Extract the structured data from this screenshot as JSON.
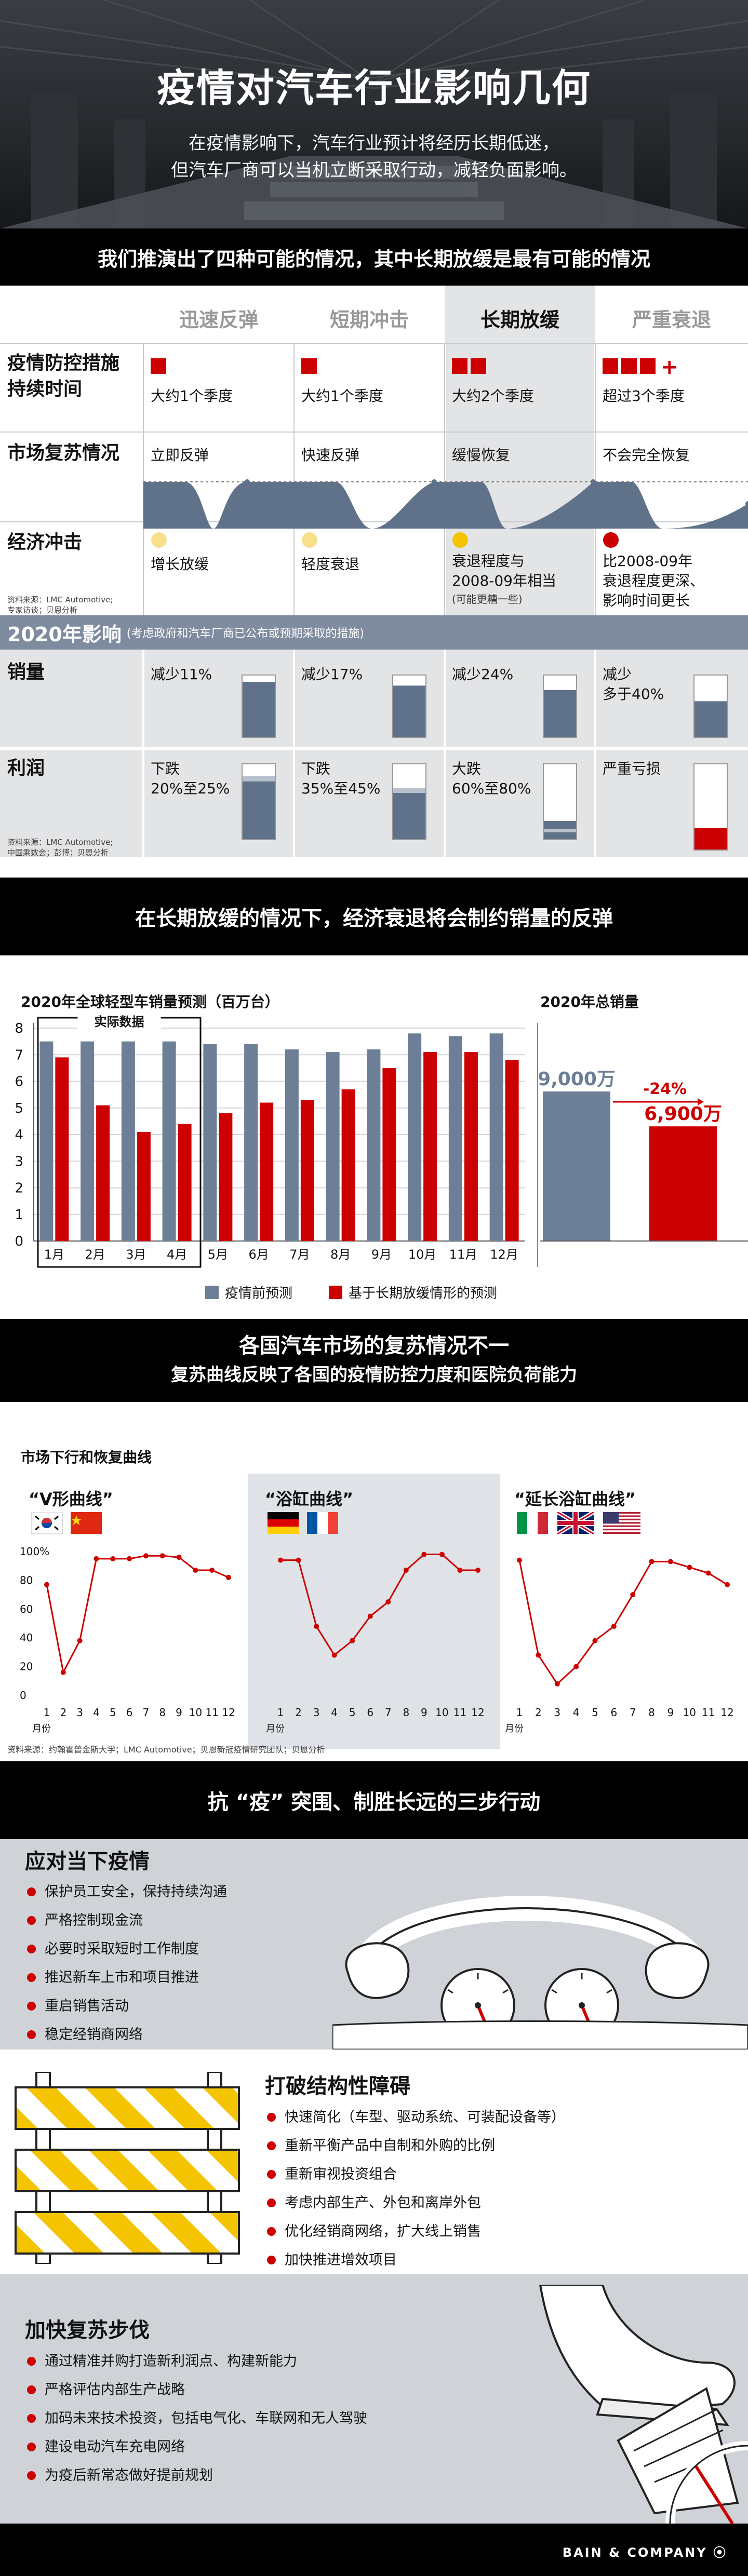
{
  "hero": {
    "title": "疫情对汽车行业影响几何",
    "subtitle_line1": "在疫情影响下，汽车行业预计将经历长期低迷，",
    "subtitle_line2": "但汽车厂商可以当机立断采取行动，减轻负面影响。"
  },
  "scenarios": {
    "banner": "我们推演出了四种可能的情况，其中长期放缓是最有可能的情况",
    "columns": [
      "迅速反弹",
      "短期冲击",
      "长期放缓",
      "严重衰退"
    ],
    "rows": {
      "measures": {
        "label_line1": "疫情防控措施",
        "label_line2": "持续时间",
        "cells": [
          "大约1个季度",
          "大约1个季度",
          "大约2个季度",
          "超过3个季度"
        ],
        "squares": [
          1,
          1,
          2,
          3
        ],
        "plus": "+"
      },
      "recovery": {
        "label": "市场复苏情况",
        "cells": [
          "立即反弹",
          "快速反弹",
          "缓慢恢复",
          "不会完全恢复"
        ]
      },
      "economy": {
        "label": "经济冲击",
        "cells": [
          {
            "line1": "增长放缓",
            "line2": "",
            "note": ""
          },
          {
            "line1": "轻度衰退",
            "line2": "",
            "note": ""
          },
          {
            "line1": "衰退程度与",
            "line2": "2008-09年相当",
            "note": "(可能更糟一些)"
          },
          {
            "line1": "比2008-09年",
            "line2": "衰退程度更深、",
            "line3": "影响时间更长",
            "note": ""
          }
        ],
        "dot_colors": [
          "#f7e08c",
          "#f7e08c",
          "#f5c400",
          "#cc0000"
        ]
      }
    },
    "source1_line1": "资料来源：LMC Automotive;",
    "source1_line2": "专家访谈；贝恩分析",
    "impact_title": "2020年影响",
    "impact_note": "(考虑政府和汽车厂商已公布或预期采取的措施)",
    "sales": {
      "label": "销量",
      "cells": [
        {
          "line1": "减少11%",
          "line2": ""
        },
        {
          "line1": "减少17%",
          "line2": ""
        },
        {
          "line1": "减少24%",
          "line2": ""
        },
        {
          "line1": "减少",
          "line2": "多于40%"
        }
      ],
      "fill_fraction": [
        0.89,
        0.83,
        0.76,
        0.58
      ]
    },
    "profit": {
      "label": "利润",
      "cells": [
        {
          "line1": "下跌",
          "line2": "20%至25%"
        },
        {
          "line1": "下跌",
          "line2": "35%至45%"
        },
        {
          "line1": "大跌",
          "line2": "60%至80%"
        },
        {
          "line1": "严重亏损",
          "line2": ""
        }
      ]
    },
    "source2_line1": "资料来源：LMC Automotive;",
    "source2_line2": "中国乘数会；彭博；贝恩分析",
    "colors": {
      "shade": "#e3e4e6",
      "accent_red": "#cc0000",
      "slate": "#5f7289"
    }
  },
  "sales_section": {
    "banner": "在长期放缓的情况下，经济衰退将会制约销量的反弹",
    "chart_title": "2020年全球轻型车销量预测（百万台）",
    "actual_label": "实际数据",
    "total_title": "2020年总销量",
    "total_before": "9,000万",
    "total_after": "6,900万",
    "total_change": "-24%",
    "legend_before": "疫情前预测",
    "legend_after": "基于长期放缓情形的预测"
  },
  "chart_data": [
    {
      "type": "bar",
      "title": "2020年全球轻型车销量预测（百万台）",
      "categories": [
        "1月",
        "2月",
        "3月",
        "4月",
        "5月",
        "6月",
        "7月",
        "8月",
        "9月",
        "10月",
        "11月",
        "12月"
      ],
      "series": [
        {
          "name": "疫情前预测",
          "color": "#6c7f97",
          "values": [
            7.5,
            7.5,
            7.5,
            7.5,
            7.4,
            7.4,
            7.2,
            7.1,
            7.2,
            7.8,
            7.7,
            7.8
          ]
        },
        {
          "name": "基于长期放缓情形的预测",
          "color": "#cc0000",
          "values": [
            6.9,
            5.1,
            4.1,
            4.4,
            4.8,
            5.2,
            5.3,
            5.7,
            6.5,
            7.1,
            7.1,
            6.8
          ]
        }
      ],
      "yticks": [
        "0",
        "1",
        "2",
        "3",
        "4",
        "5",
        "6",
        "7",
        "8"
      ],
      "ylim": [
        0,
        8
      ],
      "grid": true,
      "legend": "bottom"
    },
    {
      "type": "bar",
      "title": "2020年总销量",
      "categories": [
        "疫情前预测",
        "基于长期放缓情形的预测"
      ],
      "values": [
        90,
        69
      ],
      "labels": [
        "9,000万",
        "6,900万"
      ],
      "change": "-24%"
    },
    {
      "type": "line",
      "title": "“V形曲线”",
      "x": [
        1,
        2,
        3,
        4,
        5,
        6,
        7,
        8,
        9,
        10,
        11,
        12
      ],
      "values": [
        77,
        16,
        38,
        95,
        95,
        95,
        97,
        97,
        96,
        87,
        87,
        82
      ],
      "ylim": [
        0,
        100
      ]
    },
    {
      "type": "line",
      "title": "“浴缸曲线”",
      "x": [
        1,
        2,
        3,
        4,
        5,
        6,
        7,
        8,
        9,
        10,
        11,
        12
      ],
      "values": [
        94,
        94,
        48,
        28,
        38,
        55,
        65,
        87,
        98,
        98,
        87,
        87
      ],
      "ylim": [
        0,
        100
      ]
    },
    {
      "type": "line",
      "title": "“延长浴缸曲线”",
      "x": [
        1,
        2,
        3,
        4,
        5,
        6,
        7,
        8,
        9,
        10,
        11,
        12
      ],
      "values": [
        94,
        28,
        8,
        20,
        38,
        48,
        70,
        93,
        93,
        89,
        85,
        77
      ],
      "ylim": [
        0,
        100
      ]
    }
  ],
  "recovery_section": {
    "banner_line1": "各国汽车市场的复苏情况不一",
    "banner_line2": "复苏曲线反映了各国的疫情防控力度和医院负荷能力",
    "chart_title": "市场下行和恢复曲线",
    "panels": [
      {
        "label": "“V形曲线”",
        "flags": [
          "south-korea-flag",
          "china-flag"
        ]
      },
      {
        "label": "“浴缸曲线”",
        "flags": [
          "germany-flag",
          "france-flag"
        ]
      },
      {
        "label": "“延长浴缸曲线”",
        "flags": [
          "italy-flag",
          "uk-flag",
          "usa-flag"
        ]
      }
    ],
    "yticks": [
      "100%",
      "80",
      "60",
      "40",
      "20",
      "0"
    ],
    "xticks": [
      "1",
      "2",
      "3",
      "4",
      "5",
      "6",
      "7",
      "8",
      "9",
      "10",
      "11",
      "12"
    ],
    "xunit": "月份",
    "source": "资料来源：约翰霍普金斯大学；LMC Automotive；贝恩新冠疫情研究团队；贝恩分析"
  },
  "steps_section": {
    "banner": "抗 “疫” 突围、制胜长远的三步行动",
    "step1": {
      "title": "应对当下疫情",
      "items": [
        "保护员工安全，保持持续沟通",
        "严格控制现金流",
        "必要时采取短时工作制度",
        "推迟新车上市和项目推进",
        "重启销售活动",
        "稳定经销商网络"
      ]
    },
    "step2": {
      "title": "打破结构性障碍",
      "items": [
        "快速简化（车型、驱动系统、可装配设备等）",
        "重新平衡产品中自制和外购的比例",
        "重新审视投资组合",
        "考虑内部生产、外包和离岸外包",
        "优化经销商网络，扩大线上销售",
        "加快推进增效项目"
      ]
    },
    "step3": {
      "title": "加快复苏步伐",
      "items": [
        "通过精准并购打造新利润点、构建新能力",
        "严格评估内部生产战略",
        "加码未来技术投资，包括电气化、车联网和无人驾驶",
        "建设电动汽车充电网络",
        "为疫后新常态做好提前规划"
      ]
    }
  },
  "footer": {
    "logo": "BAIN & COMPANY ⦿"
  }
}
